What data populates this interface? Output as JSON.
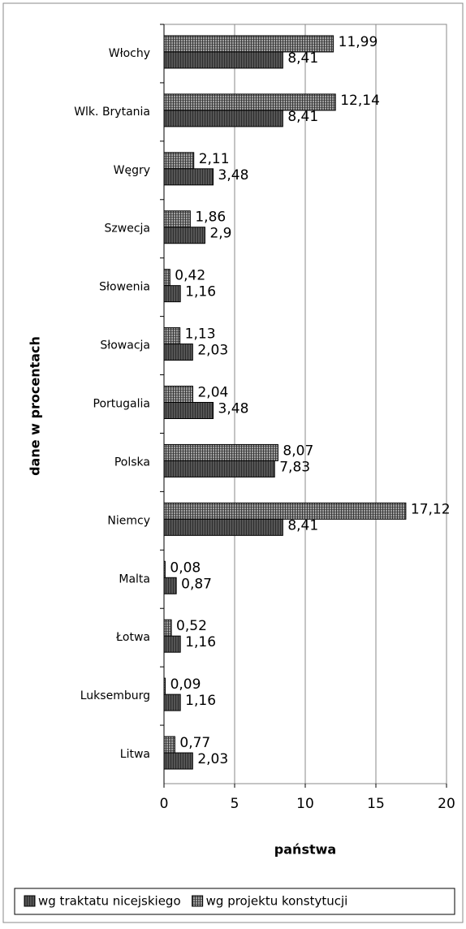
{
  "chart_data": {
    "type": "bar",
    "orientation": "horizontal",
    "x_label": "państwa",
    "y_label": "dane w procentach",
    "categories": [
      "Włochy",
      "Wlk. Brytania",
      "Węgry",
      "Szwecja",
      "Słowenia",
      "Słowacja",
      "Portugalia",
      "Polska",
      "Niemcy",
      "Malta",
      "Łotwa",
      "Luksemburg",
      "Litwa"
    ],
    "series": [
      {
        "name": "wg projektu konstytucji",
        "color": "#a0a0a0",
        "values": [
          11.99,
          12.14,
          2.11,
          1.86,
          0.42,
          1.13,
          2.04,
          8.07,
          17.12,
          0.08,
          0.52,
          0.09,
          0.77
        ],
        "value_labels": [
          "11,99",
          "12,14",
          "2,11",
          "1,86",
          "0,42",
          "1,13",
          "2,04",
          "8,07",
          "17,12",
          "0,08",
          "0,52",
          "0,09",
          "0,77"
        ]
      },
      {
        "name": "wg traktatu nicejskiego",
        "color": "#555555",
        "values": [
          8.41,
          8.41,
          3.48,
          2.9,
          1.16,
          2.03,
          3.48,
          7.83,
          8.41,
          0.87,
          1.16,
          1.16,
          2.03
        ],
        "value_labels": [
          "8,41",
          "8,41",
          "3,48",
          "2,9",
          "1,16",
          "2,03",
          "3,48",
          "7,83",
          "8,41",
          "0,87",
          "1,16",
          "1,16",
          "2,03"
        ]
      }
    ],
    "legend_order": [
      1,
      0
    ],
    "xlim": [
      0,
      20
    ],
    "xticks": [
      0,
      5,
      10,
      15,
      20
    ],
    "grid": true
  }
}
